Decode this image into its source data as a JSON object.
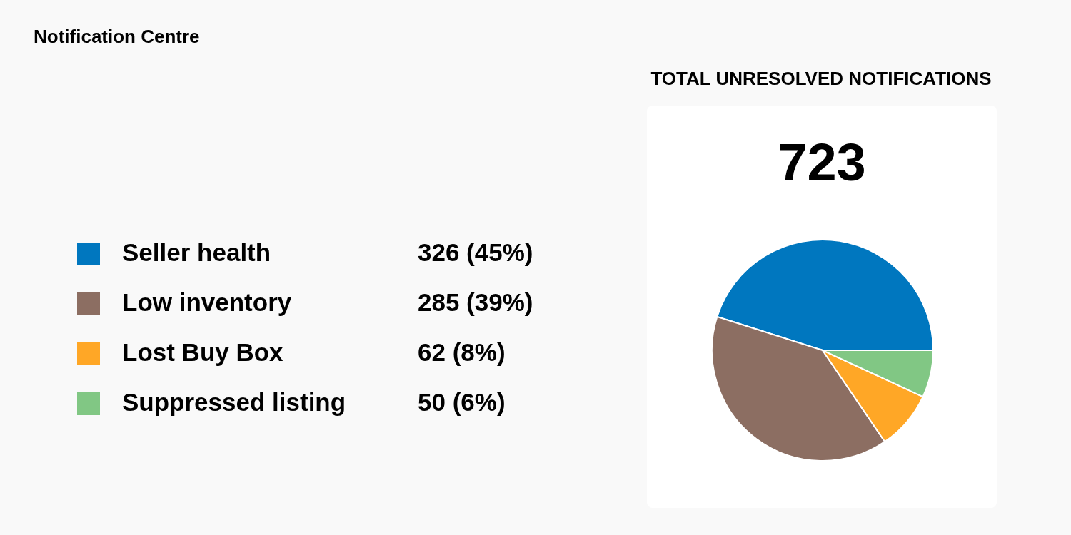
{
  "chart_data": {
    "type": "pie",
    "title": "Notification Centre",
    "subtitle": "TOTAL UNRESOLVED NOTIFICATIONS",
    "annotations": [
      "723"
    ],
    "categories": [
      "Seller health",
      "Low inventory",
      "Lost Buy Box",
      "Suppressed listing"
    ],
    "values": [
      326,
      285,
      62,
      50
    ],
    "colors": [
      "#0077bf",
      "#8c6e62",
      "#ffa726",
      "#81c784"
    ],
    "value_labels": [
      "326 (45%)",
      "285 (39%)",
      "62 (8%)",
      "50 (6%)"
    ],
    "legend": "left"
  }
}
